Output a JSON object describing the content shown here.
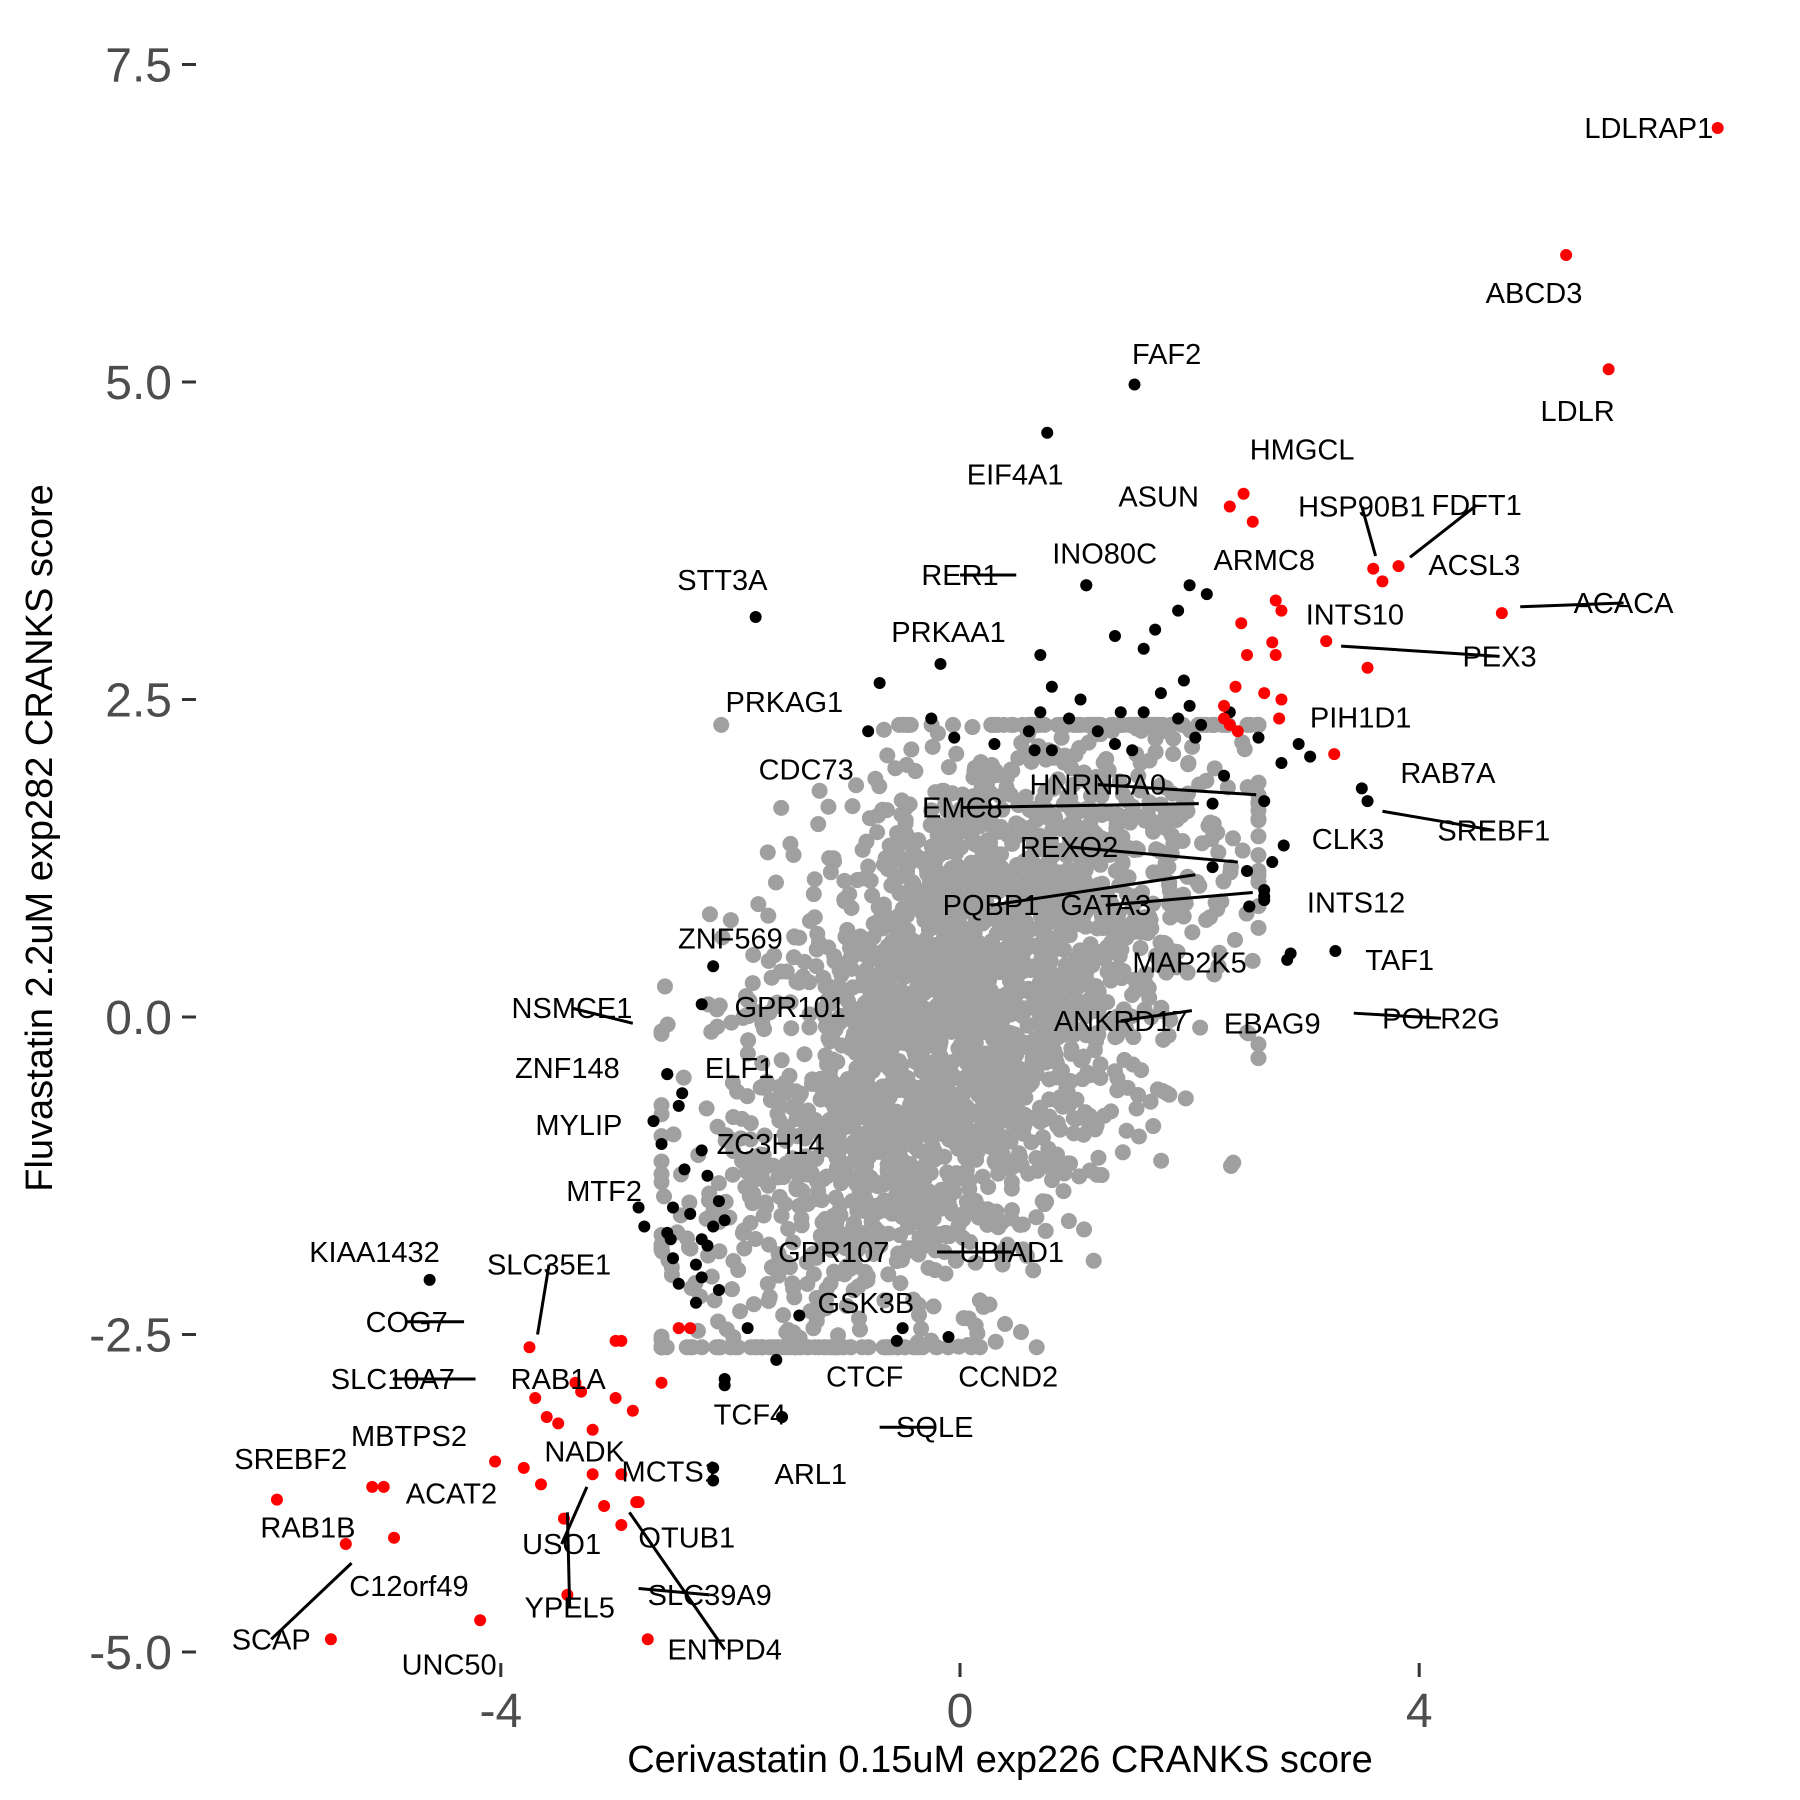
{
  "chart_data": {
    "type": "scatter",
    "title": "",
    "xlabel": "Cerivastatin 0.15uM exp226 CRANKS score",
    "ylabel": "Fluvastatin 2.2uM exp282 CRANKS score",
    "xlim": [
      -6.55,
      7.3
    ],
    "ylim": [
      -5.35,
      7.75
    ],
    "x_ticks": [
      {
        "value": -4,
        "label": "-4"
      },
      {
        "value": 0,
        "label": "0"
      },
      {
        "value": 4,
        "label": "4"
      }
    ],
    "y_ticks": [
      {
        "value": 7.5,
        "label": "7.5"
      },
      {
        "value": 5.0,
        "label": "5.0"
      },
      {
        "value": 2.5,
        "label": "2.5"
      },
      {
        "value": 0.0,
        "label": "0.0"
      },
      {
        "value": -2.5,
        "label": "-2.5"
      },
      {
        "value": -5.0,
        "label": "-5.0"
      }
    ],
    "grid": false,
    "colors": {
      "background_points": "#a0a0a0",
      "highlight_black": "#000000",
      "highlight_red": "#ff0000"
    },
    "background_cloud": {
      "n": 2600,
      "center": [
        0,
        0
      ],
      "sd_x": 1.05,
      "sd_y": 1.3,
      "correlation": 0.55
    },
    "points": [
      {
        "label": "LDLRAP1",
        "x": 6.6,
        "y": 7.0,
        "color": "red",
        "lx": 6.0,
        "ly": 7.0,
        "anchor": "middle"
      },
      {
        "label": "ABCD3",
        "x": 5.28,
        "y": 6.0,
        "color": "red",
        "lx": 5.0,
        "ly": 5.7,
        "anchor": "middle"
      },
      {
        "label": "LDLR",
        "x": 5.65,
        "y": 5.1,
        "color": "red",
        "lx": 5.38,
        "ly": 4.77,
        "anchor": "middle"
      },
      {
        "label": "FAF2",
        "x": 1.52,
        "y": 4.98,
        "color": "black",
        "lx": 1.8,
        "ly": 5.22,
        "anchor": "middle"
      },
      {
        "label": "EIF4A1",
        "x": 0.76,
        "y": 4.6,
        "color": "black",
        "lx": 0.48,
        "ly": 4.27,
        "anchor": "middle"
      },
      {
        "label": "HMGCL",
        "x": 2.47,
        "y": 4.12,
        "color": "red",
        "lx": 2.98,
        "ly": 4.47,
        "anchor": "middle"
      },
      {
        "label": "ASUN",
        "x": 2.35,
        "y": 4.02,
        "color": "red",
        "lx": 1.73,
        "ly": 4.1,
        "anchor": "middle"
      },
      {
        "label": "HSP90B1",
        "x": 3.6,
        "y": 3.53,
        "color": "red",
        "lx": 3.5,
        "ly": 4.02,
        "anchor": "middle",
        "line_to": [
          3.62,
          3.63
        ]
      },
      {
        "label": "FDFT1",
        "x": 3.82,
        "y": 3.55,
        "color": "red",
        "lx": 4.5,
        "ly": 4.03,
        "anchor": "middle",
        "line_to": [
          3.92,
          3.62
        ]
      },
      {
        "label": "ACSL3",
        "x": 3.68,
        "y": 3.43,
        "color": "red",
        "lx": 4.48,
        "ly": 3.56,
        "anchor": "middle"
      },
      {
        "label": "ACACA",
        "x": 4.72,
        "y": 3.18,
        "color": "red",
        "lx": 5.78,
        "ly": 3.26,
        "anchor": "middle",
        "line_to": [
          4.88,
          3.23
        ]
      },
      {
        "label": "INTS10",
        "x": 2.8,
        "y": 3.2,
        "color": "red",
        "lx": 3.44,
        "ly": 3.17,
        "anchor": "middle"
      },
      {
        "label": "PEX3",
        "x": 3.19,
        "y": 2.96,
        "color": "red",
        "lx": 4.7,
        "ly": 2.84,
        "anchor": "middle",
        "line_to": [
          3.32,
          2.92
        ]
      },
      {
        "label": "PIH1D1",
        "x": 3.26,
        "y": 2.07,
        "color": "red",
        "lx": 3.49,
        "ly": 2.36,
        "anchor": "middle"
      },
      {
        "label": "ARMC8",
        "x": 2.15,
        "y": 3.33,
        "color": "black",
        "lx": 2.65,
        "ly": 3.6,
        "anchor": "middle"
      },
      {
        "label": "INO80C",
        "x": 1.1,
        "y": 3.4,
        "color": "black",
        "lx": 1.26,
        "ly": 3.65,
        "anchor": "middle"
      },
      {
        "label": "RER1",
        "x": 1.1,
        "y": 3.4,
        "color": "black",
        "lx": 0.0,
        "ly": 3.48,
        "anchor": "middle",
        "line_to": [
          0.49,
          3.48
        ]
      },
      {
        "label": "STT3A",
        "x": -1.78,
        "y": 3.15,
        "color": "black",
        "lx": -2.07,
        "ly": 3.44,
        "anchor": "middle"
      },
      {
        "label": "PRKAA1",
        "x": -0.17,
        "y": 2.78,
        "color": "black",
        "lx": -0.1,
        "ly": 3.03,
        "anchor": "middle"
      },
      {
        "label": "PRKAG1",
        "x": -0.7,
        "y": 2.63,
        "color": "black",
        "lx": -1.53,
        "ly": 2.48,
        "anchor": "middle"
      },
      {
        "label": "CDC73",
        "x": -0.8,
        "y": 2.25,
        "color": "black",
        "lx": -1.34,
        "ly": 1.95,
        "anchor": "middle"
      },
      {
        "label": "RAB7A",
        "x": 3.5,
        "y": 1.8,
        "color": "black",
        "lx": 4.25,
        "ly": 1.92,
        "anchor": "middle"
      },
      {
        "label": "SREBF1",
        "x": 3.55,
        "y": 1.7,
        "color": "black",
        "lx": 4.65,
        "ly": 1.47,
        "anchor": "middle",
        "line_to": [
          3.68,
          1.62
        ]
      },
      {
        "label": "HNRNPA0",
        "x": 2.65,
        "y": 1.7,
        "color": "black",
        "lx": 1.2,
        "ly": 1.83,
        "anchor": "middle",
        "line_to": [
          2.58,
          1.75
        ]
      },
      {
        "label": "EMC8",
        "x": 2.2,
        "y": 1.68,
        "color": "black",
        "lx": 0.02,
        "ly": 1.65,
        "anchor": "middle",
        "line_to": [
          2.08,
          1.68
        ]
      },
      {
        "label": "CLK3",
        "x": 2.82,
        "y": 1.35,
        "color": "black",
        "lx": 3.38,
        "ly": 1.4,
        "anchor": "middle"
      },
      {
        "label": "REXO2",
        "x": 2.5,
        "y": 1.15,
        "color": "black",
        "lx": 0.95,
        "ly": 1.34,
        "anchor": "middle",
        "line_to": [
          2.42,
          1.22
        ]
      },
      {
        "label": "PQBP1",
        "x": 2.2,
        "y": 1.18,
        "color": "black",
        "lx": 0.27,
        "ly": 0.88,
        "anchor": "middle",
        "line_to": [
          2.05,
          1.12
        ]
      },
      {
        "label": "GATA3",
        "x": 2.65,
        "y": 1.0,
        "color": "black",
        "lx": 1.27,
        "ly": 0.88,
        "anchor": "middle",
        "line_to": [
          2.55,
          0.98
        ]
      },
      {
        "label": "INTS12",
        "x": 2.65,
        "y": 0.92,
        "color": "black",
        "lx": 3.45,
        "ly": 0.9,
        "anchor": "middle"
      },
      {
        "label": "MAP2K5",
        "x": 2.52,
        "y": 0.87,
        "color": "black",
        "lx": 2.0,
        "ly": 0.43,
        "anchor": "middle"
      },
      {
        "label": "TAF1",
        "x": 3.27,
        "y": 0.52,
        "color": "black",
        "lx": 3.83,
        "ly": 0.45,
        "anchor": "middle"
      },
      {
        "label": "POLR2G",
        "x": 2.88,
        "y": 0.5,
        "color": "black",
        "lx": 4.19,
        "ly": -0.01,
        "anchor": "middle",
        "line_to": [
          3.43,
          0.03
        ]
      },
      {
        "label": "EBAG9",
        "x": 2.85,
        "y": 0.45,
        "color": "black",
        "lx": 2.72,
        "ly": -0.05,
        "anchor": "middle"
      },
      {
        "label": "ANKRD17",
        "x": 2.52,
        "y": 0.87,
        "color": "black",
        "lx": 1.4,
        "ly": -0.03,
        "anchor": "middle",
        "line_to": [
          2.02,
          0.05
        ]
      },
      {
        "label": "ZNF569",
        "x": -2.15,
        "y": 0.4,
        "color": "black",
        "lx": -2.0,
        "ly": 0.62,
        "anchor": "middle"
      },
      {
        "label": "NSMCE1",
        "x": -2.55,
        "y": -0.45,
        "color": "black",
        "lx": -3.38,
        "ly": 0.07,
        "anchor": "middle",
        "line_to": [
          -2.85,
          -0.05
        ]
      },
      {
        "label": "GPR101",
        "x": -2.25,
        "y": 0.1,
        "color": "black",
        "lx": -1.48,
        "ly": 0.08,
        "anchor": "middle"
      },
      {
        "label": "ZNF148",
        "x": -2.55,
        "y": -0.45,
        "color": "black",
        "lx": -3.42,
        "ly": -0.4,
        "anchor": "middle"
      },
      {
        "label": "ELF1",
        "x": -2.42,
        "y": -0.6,
        "color": "black",
        "lx": -1.92,
        "ly": -0.4,
        "anchor": "middle"
      },
      {
        "label": "MYLIP",
        "x": -2.67,
        "y": -0.82,
        "color": "black",
        "lx": -3.32,
        "ly": -0.85,
        "anchor": "middle"
      },
      {
        "label": "ZC3H14",
        "x": -2.25,
        "y": -1.05,
        "color": "black",
        "lx": -1.65,
        "ly": -1.0,
        "anchor": "middle"
      },
      {
        "label": "MTF2",
        "x": -2.5,
        "y": -1.5,
        "color": "black",
        "lx": -3.1,
        "ly": -1.37,
        "anchor": "middle"
      },
      {
        "label": "KIAA1432",
        "x": -4.62,
        "y": -2.07,
        "color": "black",
        "lx": -5.1,
        "ly": -1.85,
        "anchor": "middle"
      },
      {
        "label": "SLC35E1",
        "x": -3.75,
        "y": -2.6,
        "color": "red",
        "lx": -3.58,
        "ly": -1.95,
        "anchor": "middle",
        "line_to": [
          -3.68,
          -2.5
        ]
      },
      {
        "label": "GPR107",
        "x": -2.25,
        "y": -1.75,
        "color": "black",
        "lx": -1.1,
        "ly": -1.85,
        "anchor": "middle"
      },
      {
        "label": "UBIAD1",
        "x": -0.5,
        "y": -2.45,
        "color": "black",
        "lx": 0.45,
        "ly": -1.85,
        "anchor": "middle",
        "line_to": [
          -0.2,
          -1.85
        ]
      },
      {
        "label": "GSK3B",
        "x": -1.4,
        "y": -2.35,
        "color": "black",
        "lx": -0.82,
        "ly": -2.25,
        "anchor": "middle"
      },
      {
        "label": "COG7",
        "x": -3.7,
        "y": -3.0,
        "color": "red",
        "lx": -4.82,
        "ly": -2.4,
        "anchor": "middle",
        "line_to": [
          -4.32,
          -2.4
        ]
      },
      {
        "label": "SLC10A7",
        "x": -3.6,
        "y": -3.15,
        "color": "red",
        "lx": -4.94,
        "ly": -2.85,
        "anchor": "middle",
        "line_to": [
          -4.22,
          -2.85
        ]
      },
      {
        "label": "RAB1A",
        "x": -3.0,
        "y": -3.0,
        "color": "red",
        "lx": -3.5,
        "ly": -2.85,
        "anchor": "middle"
      },
      {
        "label": "CTCF",
        "x": -0.55,
        "y": -2.55,
        "color": "black",
        "lx": -0.83,
        "ly": -2.83,
        "anchor": "middle"
      },
      {
        "label": "CCND2",
        "x": -0.1,
        "y": -2.52,
        "color": "black",
        "lx": 0.42,
        "ly": -2.83,
        "anchor": "middle"
      },
      {
        "label": "TCF4",
        "x": -2.05,
        "y": -2.9,
        "color": "black",
        "lx": -1.83,
        "ly": -3.13,
        "anchor": "middle"
      },
      {
        "label": "SQLE",
        "x": -1.55,
        "y": -3.15,
        "color": "black",
        "lx": -0.22,
        "ly": -3.23,
        "anchor": "middle",
        "line_to": [
          -0.7,
          -3.23
        ]
      },
      {
        "label": "MBTPS2",
        "x": -4.05,
        "y": -3.5,
        "color": "red",
        "lx": -4.8,
        "ly": -3.3,
        "anchor": "middle"
      },
      {
        "label": "NADK",
        "x": -3.2,
        "y": -3.6,
        "color": "red",
        "lx": -3.27,
        "ly": -3.42,
        "anchor": "middle"
      },
      {
        "label": "MCTS1",
        "x": -2.95,
        "y": -3.6,
        "color": "red",
        "lx": -2.52,
        "ly": -3.58,
        "anchor": "middle"
      },
      {
        "label": "ARL1",
        "x": -2.15,
        "y": -3.65,
        "color": "black",
        "lx": -1.3,
        "ly": -3.6,
        "anchor": "middle"
      },
      {
        "label": "SREBF2",
        "x": -5.95,
        "y": -3.8,
        "color": "red",
        "lx": -5.83,
        "ly": -3.48,
        "anchor": "middle"
      },
      {
        "label": "ACAT2",
        "x": -5.12,
        "y": -3.7,
        "color": "red",
        "lx": -4.43,
        "ly": -3.75,
        "anchor": "middle"
      },
      {
        "label": "RAB1B",
        "x": -5.35,
        "y": -4.15,
        "color": "red",
        "lx": -5.68,
        "ly": -4.02,
        "anchor": "middle"
      },
      {
        "label": "USO1",
        "x": -3.45,
        "y": -3.95,
        "color": "red",
        "lx": -3.47,
        "ly": -4.15,
        "anchor": "middle",
        "line_to": [
          -3.25,
          -3.7
        ]
      },
      {
        "label": "OTUB1",
        "x": -2.82,
        "y": -3.82,
        "color": "red",
        "lx": -2.38,
        "ly": -4.1,
        "anchor": "middle"
      },
      {
        "label": "C12orf49",
        "x": -4.93,
        "y": -4.1,
        "color": "red",
        "lx": -4.8,
        "ly": -4.48,
        "anchor": "middle"
      },
      {
        "label": "SLC39A9",
        "x": -2.95,
        "y": -4.0,
        "color": "red",
        "lx": -2.18,
        "ly": -4.55,
        "anchor": "middle",
        "line_to": [
          -2.8,
          -4.5
        ]
      },
      {
        "label": "YPEL5",
        "x": -3.42,
        "y": -4.55,
        "color": "red",
        "lx": -3.4,
        "ly": -4.65,
        "anchor": "middle",
        "line_to": [
          -3.42,
          -3.9
        ]
      },
      {
        "label": "SCAP",
        "x": -5.48,
        "y": -4.9,
        "color": "red",
        "lx": -6.0,
        "ly": -4.9,
        "anchor": "middle",
        "line_to": [
          -5.3,
          -4.3
        ]
      },
      {
        "label": "UNC50",
        "x": -4.18,
        "y": -4.75,
        "color": "red",
        "lx": -4.45,
        "ly": -5.1,
        "anchor": "middle"
      },
      {
        "label": "ENTPD4",
        "x": -2.72,
        "y": -4.9,
        "color": "red",
        "lx": -2.05,
        "ly": -4.98,
        "anchor": "middle",
        "line_to": [
          -2.88,
          -3.9
        ]
      }
    ],
    "extra_black": [
      [
        2.0,
        3.4
      ],
      [
        1.9,
        3.2
      ],
      [
        1.7,
        3.05
      ],
      [
        1.35,
        3.0
      ],
      [
        1.6,
        2.9
      ],
      [
        1.95,
        2.65
      ],
      [
        1.75,
        2.55
      ],
      [
        2.0,
        2.45
      ],
      [
        1.4,
        2.4
      ],
      [
        1.6,
        2.4
      ],
      [
        1.05,
        2.5
      ],
      [
        0.95,
        2.35
      ],
      [
        0.7,
        2.4
      ],
      [
        0.6,
        2.25
      ],
      [
        0.8,
        2.1
      ],
      [
        1.2,
        2.25
      ],
      [
        1.35,
        2.15
      ],
      [
        1.9,
        2.35
      ],
      [
        2.05,
        2.2
      ],
      [
        2.3,
        1.9
      ],
      [
        1.5,
        2.1
      ],
      [
        0.3,
        2.15
      ],
      [
        -0.05,
        2.2
      ],
      [
        -0.25,
        2.35
      ],
      [
        0.7,
        2.85
      ],
      [
        0.8,
        2.6
      ],
      [
        0.65,
        2.1
      ],
      [
        2.1,
        2.3
      ],
      [
        2.35,
        2.4
      ],
      [
        2.6,
        2.2
      ],
      [
        2.95,
        2.15
      ],
      [
        3.05,
        2.05
      ],
      [
        2.8,
        2.0
      ],
      [
        2.72,
        1.22
      ],
      [
        2.65,
        0.95
      ],
      [
        -2.45,
        -0.7
      ],
      [
        -2.6,
        -1.0
      ],
      [
        -2.2,
        -1.25
      ],
      [
        -2.4,
        -1.2
      ],
      [
        -2.35,
        -1.55
      ],
      [
        -2.55,
        -1.7
      ],
      [
        -2.75,
        -1.65
      ],
      [
        -2.8,
        -1.5
      ],
      [
        -2.5,
        -1.9
      ],
      [
        -2.3,
        -1.95
      ],
      [
        -2.15,
        -1.65
      ],
      [
        -2.05,
        -1.6
      ],
      [
        -2.2,
        -1.8
      ],
      [
        -2.45,
        -2.1
      ],
      [
        -2.3,
        -2.25
      ],
      [
        -2.1,
        -2.15
      ],
      [
        -1.85,
        -2.45
      ],
      [
        -1.6,
        -2.7
      ],
      [
        -2.05,
        -2.85
      ],
      [
        -2.15,
        -3.55
      ],
      [
        -2.52,
        -1.75
      ],
      [
        -2.25,
        -2.05
      ],
      [
        -2.1,
        -1.45
      ]
    ],
    "extra_red": [
      [
        2.75,
        3.28
      ],
      [
        2.45,
        3.1
      ],
      [
        2.72,
        2.95
      ],
      [
        2.5,
        2.85
      ],
      [
        2.75,
        2.85
      ],
      [
        3.55,
        2.75
      ],
      [
        2.4,
        2.6
      ],
      [
        2.65,
        2.55
      ],
      [
        2.8,
        2.5
      ],
      [
        2.3,
        2.45
      ],
      [
        2.35,
        2.3
      ],
      [
        2.42,
        2.25
      ],
      [
        2.78,
        2.35
      ],
      [
        2.3,
        2.35
      ],
      [
        2.55,
        3.9
      ],
      [
        -3.0,
        -2.55
      ],
      [
        -2.95,
        -2.55
      ],
      [
        -2.45,
        -2.45
      ],
      [
        -2.35,
        -2.45
      ],
      [
        -3.3,
        -2.95
      ],
      [
        -3.35,
        -2.88
      ],
      [
        -3.5,
        -3.2
      ],
      [
        -3.2,
        -3.25
      ],
      [
        -2.6,
        -2.88
      ],
      [
        -3.8,
        -3.55
      ],
      [
        -3.65,
        -3.68
      ],
      [
        -3.1,
        -3.85
      ],
      [
        -2.8,
        -3.82
      ],
      [
        -5.02,
        -3.7
      ],
      [
        -2.85,
        -3.1
      ]
    ]
  }
}
